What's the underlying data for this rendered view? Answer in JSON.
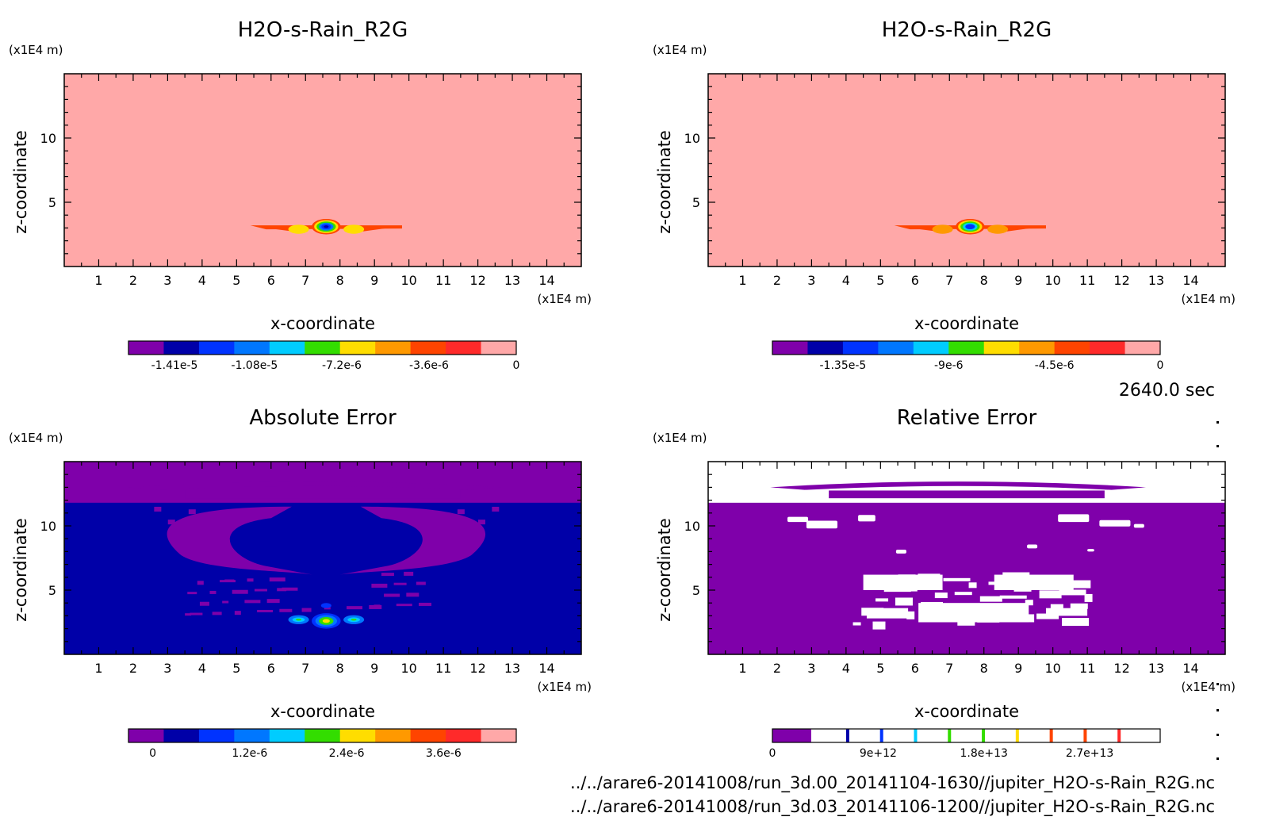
{
  "colors": {
    "purple": "#7f00aa",
    "navy": "#0000a8",
    "blue": "#0033ff",
    "azure": "#0077ff",
    "cyan": "#00ccff",
    "green": "#33dd00",
    "yellow": "#ffdd00",
    "orange": "#ff9900",
    "red_orange": "#ff4400",
    "red": "#ff2a2a",
    "pink": "#ffa8a8",
    "white": "#ffffff"
  },
  "timestamp": "2640.0 sec",
  "source_files": [
    "../../arare6-20141008/run_3d.00_20141104-1630//jupiter_H2O-s-Rain_R2G.nc",
    "../../arare6-20141008/run_3d.03_20141106-1200//jupiter_H2O-s-Rain_R2G.nc"
  ],
  "chart_data": [
    {
      "type": "heatmap",
      "title": "H2O-s-Rain_R2G",
      "xlabel": "x-coordinate",
      "ylabel": "z-coordinate",
      "x_unit": "(x1E4 m)",
      "y_unit": "(x1E4 m)",
      "xlim": [
        0,
        15
      ],
      "ylim": [
        0,
        15
      ],
      "x_ticks": [
        1,
        2,
        3,
        4,
        5,
        6,
        7,
        8,
        9,
        10,
        11,
        12,
        13,
        14
      ],
      "y_ticks": [
        5,
        10
      ],
      "background_value": 0,
      "features": [
        {
          "kind": "band",
          "x": [
            5.4,
            9.8
          ],
          "z": 3.2,
          "value": -3.6e-06
        },
        {
          "kind": "blob",
          "x": 6.8,
          "z": 2.9,
          "value": -6e-06
        },
        {
          "kind": "blob",
          "x": 8.4,
          "z": 2.9,
          "value": -6e-06
        },
        {
          "kind": "core",
          "x": 7.6,
          "z": 3.1,
          "value": -1.41e-05
        }
      ],
      "colorbar": {
        "colors": [
          "#7f00aa",
          "#0000a8",
          "#0033ff",
          "#0077ff",
          "#00ccff",
          "#33dd00",
          "#ffdd00",
          "#ff9900",
          "#ff4400",
          "#ff2a2a",
          "#ffa8a8"
        ],
        "tick_labels": [
          "-1.41e-5",
          "-1.08e-5",
          "-7.2e-6",
          "-3.6e-6",
          "0"
        ],
        "tick_values": [
          -1.41e-05,
          -1.08e-05,
          -7.2e-06,
          -3.6e-06,
          0
        ],
        "range": [
          -1.6e-05,
          0
        ]
      }
    },
    {
      "type": "heatmap",
      "title": "H2O-s-Rain_R2G",
      "xlabel": "x-coordinate",
      "ylabel": "z-coordinate",
      "x_unit": "(x1E4 m)",
      "y_unit": "(x1E4 m)",
      "xlim": [
        0,
        15
      ],
      "ylim": [
        0,
        15
      ],
      "x_ticks": [
        1,
        2,
        3,
        4,
        5,
        6,
        7,
        8,
        9,
        10,
        11,
        12,
        13,
        14
      ],
      "y_ticks": [
        5,
        10
      ],
      "background_value": 0,
      "features": [
        {
          "kind": "band",
          "x": [
            5.4,
            9.8
          ],
          "z": 3.2,
          "value": -3.6e-06
        },
        {
          "kind": "blob",
          "x": 6.8,
          "z": 2.9,
          "value": -6e-06
        },
        {
          "kind": "blob",
          "x": 8.4,
          "z": 2.9,
          "value": -6e-06
        },
        {
          "kind": "core",
          "x": 7.6,
          "z": 3.1,
          "value": -1.35e-05
        }
      ],
      "colorbar": {
        "colors": [
          "#7f00aa",
          "#0000a8",
          "#0033ff",
          "#0077ff",
          "#00ccff",
          "#33dd00",
          "#ffdd00",
          "#ff9900",
          "#ff4400",
          "#ff2a2a",
          "#ffa8a8"
        ],
        "tick_labels": [
          "-1.35e-5",
          "-9e-6",
          "-4.5e-6",
          "0"
        ],
        "tick_values": [
          -1.35e-05,
          -9e-06,
          -4.5e-06,
          0
        ],
        "range": [
          -1.65e-05,
          0
        ]
      }
    },
    {
      "type": "heatmap",
      "title": "Absolute Error",
      "xlabel": "x-coordinate",
      "ylabel": "z-coordinate",
      "x_unit": "(x1E4 m)",
      "y_unit": "(x1E4 m)",
      "xlim": [
        0,
        15
      ],
      "ylim": [
        0,
        15
      ],
      "x_ticks": [
        1,
        2,
        3,
        4,
        5,
        6,
        7,
        8,
        9,
        10,
        11,
        12,
        13,
        14
      ],
      "y_ticks": [
        5,
        10
      ],
      "background_value": 3e-07,
      "features": [
        {
          "kind": "top_layer",
          "z_min": 11.8,
          "value": 0
        },
        {
          "kind": "arc",
          "x": [
            1.8,
            12.7
          ],
          "z": 13.0,
          "value": 0
        },
        {
          "kind": "wing_left",
          "x": [
            2.6,
            6.6
          ],
          "z": [
            6.5,
            11.5
          ],
          "value": 0
        },
        {
          "kind": "wing_right",
          "x": [
            8.6,
            12.6
          ],
          "z": [
            6.5,
            11.5
          ],
          "value": 0
        },
        {
          "kind": "speckle",
          "x": [
            3.5,
            10.5
          ],
          "z": [
            3.2,
            6.5
          ],
          "value": 0
        },
        {
          "kind": "blob",
          "x": 6.8,
          "z": 2.7,
          "value": 1.2e-06
        },
        {
          "kind": "blob",
          "x": 8.4,
          "z": 2.7,
          "value": 1.2e-06
        },
        {
          "kind": "core",
          "x": 7.6,
          "z": 2.6,
          "value": 2.4e-06
        }
      ],
      "colorbar": {
        "colors": [
          "#7f00aa",
          "#0000a8",
          "#0033ff",
          "#0077ff",
          "#00ccff",
          "#33dd00",
          "#ffdd00",
          "#ff9900",
          "#ff4400",
          "#ff2a2a",
          "#ffa8a8"
        ],
        "tick_labels": [
          "0",
          "1.2e-6",
          "2.4e-6",
          "3.6e-6"
        ],
        "tick_values": [
          0,
          1.2e-06,
          2.4e-06,
          3.6e-06
        ],
        "range": [
          -3e-07,
          4.5e-06
        ]
      }
    },
    {
      "type": "heatmap",
      "title": "Relative Error",
      "xlabel": "x-coordinate",
      "ylabel": "z-coordinate",
      "x_unit": "(x1E4 m)",
      "y_unit": "(x1E4 m)",
      "xlim": [
        0,
        15
      ],
      "ylim": [
        0,
        15
      ],
      "x_ticks": [
        1,
        2,
        3,
        4,
        5,
        6,
        7,
        8,
        9,
        10,
        11,
        12,
        13,
        14
      ],
      "y_ticks": [
        5,
        10
      ],
      "background_value": 0,
      "features": [
        {
          "kind": "top_layer",
          "z_min": 11.8,
          "value": "undefined"
        },
        {
          "kind": "arc",
          "x": [
            1.8,
            12.7
          ],
          "z": 13.0,
          "value": 0
        },
        {
          "kind": "holes",
          "x": [
            2.5,
            12.8
          ],
          "z": [
            9.5,
            11.2
          ],
          "value": "undefined"
        },
        {
          "kind": "lattice",
          "x": [
            4.2,
            11.0
          ],
          "z": [
            2.5,
            6.5
          ],
          "value": "undefined"
        }
      ],
      "colorbar": {
        "colors": [
          "#7f00aa",
          "#ffffff"
        ],
        "marks": [
          "#0000a8",
          "#0033ff",
          "#00ccff",
          "#33dd00",
          "#33dd00",
          "#ffdd00",
          "#ff4400",
          "#ff4400",
          "#ff2a2a"
        ],
        "tick_labels": [
          "0",
          "9e+12",
          "1.8e+13",
          "2.7e+13"
        ],
        "tick_values": [
          0,
          9000000000000.0,
          18000000000000.0,
          27000000000000.0
        ],
        "range": [
          0,
          33000000000000.0
        ]
      }
    }
  ]
}
